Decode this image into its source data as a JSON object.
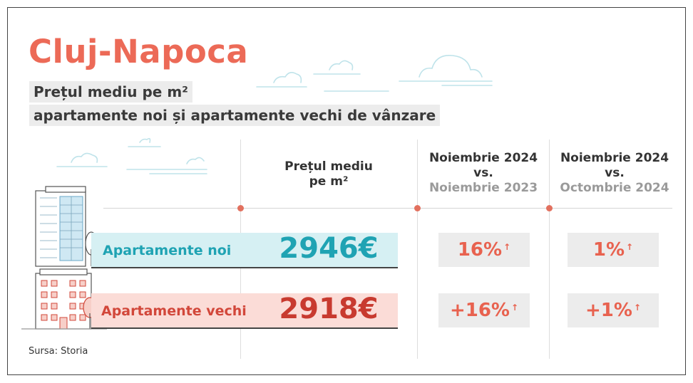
{
  "header": {
    "title": "Cluj-Napoca",
    "subtitle_line1": "Prețul mediu pe m²",
    "subtitle_line2": "apartamente noi și apartamente vechi de vânzare"
  },
  "columns": {
    "price": {
      "line1": "Prețul mediu",
      "line2": "pe m²"
    },
    "yoy": {
      "line1": "Noiembrie 2024",
      "line2": "vs.",
      "line3": "Noiembrie 2023"
    },
    "mom": {
      "line1": "Noiembrie 2024",
      "line2": "vs.",
      "line3": "Octombrie 2024"
    }
  },
  "rows": [
    {
      "label": "Apartamente noi",
      "price": "2946€",
      "yoy": "16%",
      "mom": "1%",
      "label_color": "#1fa3b3",
      "price_color": "#1fa3b3"
    },
    {
      "label": "Apartamente vechi",
      "price": "2918€",
      "yoy": "+16%",
      "mom": "+1%",
      "label_color": "#d2473a",
      "price_color": "#c83a2f"
    }
  ],
  "arrow_glyph": "↑",
  "source": "Sursa: Storia",
  "colors": {
    "accent": "#ec6a57",
    "teal": "#1fa3b3",
    "pill_bg": "#ececec"
  }
}
